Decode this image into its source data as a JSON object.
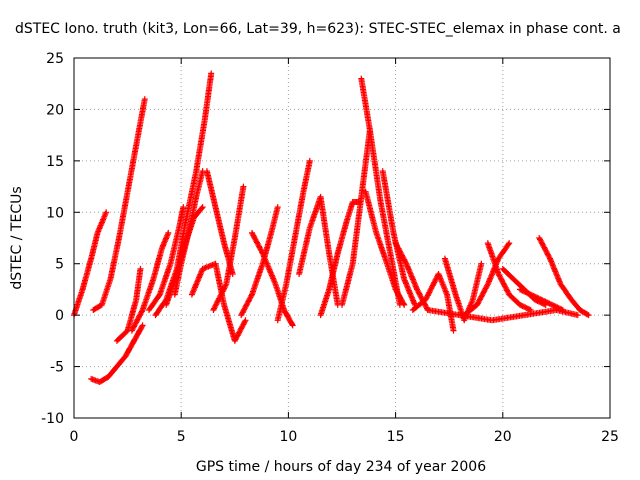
{
  "chart_data": {
    "type": "scatter",
    "title": "dSTEC Iono. truth (kit3, Lon=66, Lat=39, h=623): STEC-STEC_elemax in phase cont. a",
    "xlabel": "GPS time / hours of day 234 of year 2006",
    "ylabel": "dSTEC  / TECUs",
    "xlim": [
      0,
      25
    ],
    "ylim": [
      -10,
      25
    ],
    "xticks": [
      0,
      5,
      10,
      15,
      20,
      25
    ],
    "yticks": [
      -10,
      -5,
      0,
      5,
      10,
      15,
      20,
      25
    ],
    "grid": true,
    "marker": "plus",
    "color": "#ff0000",
    "series": [
      {
        "x": [
          0.0,
          0.4,
          0.8,
          1.1,
          1.5
        ],
        "y": [
          0.0,
          2.5,
          5.5,
          8.0,
          10.0
        ]
      },
      {
        "x": [
          0.9,
          1.3,
          1.7,
          2.1,
          2.5,
          2.9,
          3.3
        ],
        "y": [
          0.5,
          1.0,
          3.5,
          7.5,
          12.0,
          16.5,
          21.0
        ]
      },
      {
        "x": [
          0.8,
          1.2,
          1.6,
          2.0,
          2.4,
          2.8,
          3.2
        ],
        "y": [
          -6.2,
          -6.5,
          -6.0,
          -5.0,
          -4.0,
          -2.5,
          -1.0
        ]
      },
      {
        "x": [
          2.0,
          2.5,
          2.9,
          3.1
        ],
        "y": [
          -2.5,
          -1.5,
          1.5,
          4.5
        ]
      },
      {
        "x": [
          2.7,
          3.2,
          3.7,
          4.1,
          4.4
        ],
        "y": [
          -1.5,
          0.5,
          3.5,
          6.5,
          8.0
        ]
      },
      {
        "x": [
          3.5,
          4.0,
          4.5,
          4.9,
          5.1
        ],
        "y": [
          0.5,
          2.0,
          5.0,
          8.5,
          10.5
        ]
      },
      {
        "x": [
          3.8,
          4.3,
          4.8,
          5.2,
          5.7,
          6.1,
          6.4
        ],
        "y": [
          0.0,
          1.5,
          4.5,
          9.0,
          14.0,
          19.0,
          23.5
        ]
      },
      {
        "x": [
          4.7,
          5.0,
          5.4,
          5.7,
          6.0
        ],
        "y": [
          2.0,
          5.0,
          8.5,
          11.5,
          14.0
        ]
      },
      {
        "x": [
          4.3,
          4.8,
          5.2,
          5.6,
          6.0
        ],
        "y": [
          1.0,
          4.0,
          7.0,
          9.5,
          10.5
        ]
      },
      {
        "x": [
          5.5,
          6.0,
          6.6,
          7.0,
          7.5,
          8.0
        ],
        "y": [
          2.0,
          4.5,
          5.0,
          1.0,
          -2.5,
          -0.5
        ]
      },
      {
        "x": [
          6.2,
          6.6,
          7.0,
          7.4
        ],
        "y": [
          14.0,
          10.5,
          7.0,
          4.0
        ]
      },
      {
        "x": [
          6.5,
          7.1,
          7.5,
          7.9
        ],
        "y": [
          0.5,
          3.0,
          7.5,
          12.5
        ]
      },
      {
        "x": [
          7.8,
          8.3,
          8.8,
          9.2,
          9.5
        ],
        "y": [
          0.0,
          2.0,
          5.0,
          8.0,
          10.5
        ]
      },
      {
        "x": [
          8.3,
          8.8,
          9.4,
          9.8,
          10.2
        ],
        "y": [
          8.0,
          6.0,
          3.0,
          0.5,
          -1.0
        ]
      },
      {
        "x": [
          9.5,
          9.9,
          10.3,
          10.7,
          11.0
        ],
        "y": [
          -0.5,
          3.0,
          7.5,
          12.0,
          15.0
        ]
      },
      {
        "x": [
          10.5,
          11.0,
          11.5,
          11.9,
          12.3
        ],
        "y": [
          4.0,
          8.5,
          11.5,
          6.0,
          1.0
        ]
      },
      {
        "x": [
          11.5,
          11.9,
          12.3,
          12.7,
          13.0,
          13.3
        ],
        "y": [
          0.0,
          2.5,
          6.0,
          9.0,
          11.0,
          11.0
        ]
      },
      {
        "x": [
          12.5,
          13.0,
          13.4,
          13.8
        ],
        "y": [
          1.0,
          5.0,
          11.5,
          18.0
        ]
      },
      {
        "x": [
          13.4,
          13.8,
          14.3,
          14.8,
          15.2
        ],
        "y": [
          23.0,
          18.0,
          11.0,
          5.5,
          1.0
        ]
      },
      {
        "x": [
          13.6,
          14.1,
          14.6,
          15.0,
          15.4
        ],
        "y": [
          12.0,
          8.0,
          5.0,
          2.5,
          1.0
        ]
      },
      {
        "x": [
          14.4,
          14.9,
          15.4,
          15.9
        ],
        "y": [
          14.0,
          8.0,
          3.5,
          1.0
        ]
      },
      {
        "x": [
          15.0,
          15.5,
          16.0,
          16.5
        ],
        "y": [
          7.0,
          5.0,
          2.5,
          0.5
        ]
      },
      {
        "x": [
          15.8,
          16.4,
          17.0,
          17.4,
          17.7
        ],
        "y": [
          0.5,
          1.5,
          4.0,
          2.0,
          -1.5
        ]
      },
      {
        "x": [
          17.3,
          17.8,
          18.2,
          18.6,
          19.0
        ],
        "y": [
          5.5,
          2.0,
          -0.5,
          1.5,
          5.0
        ]
      },
      {
        "x": [
          18.2,
          18.8,
          19.3,
          19.8,
          20.3
        ],
        "y": [
          0.0,
          1.0,
          3.0,
          5.5,
          7.0
        ]
      },
      {
        "x": [
          19.3,
          19.8,
          20.3,
          20.8,
          21.3
        ],
        "y": [
          7.0,
          4.0,
          2.0,
          1.0,
          0.5
        ]
      },
      {
        "x": [
          20.0,
          20.5,
          21.0,
          21.5,
          22.0
        ],
        "y": [
          4.5,
          3.5,
          2.5,
          1.5,
          1.0
        ]
      },
      {
        "x": [
          20.8,
          21.3,
          21.8,
          22.3,
          22.8
        ],
        "y": [
          2.5,
          2.0,
          1.5,
          1.0,
          0.5
        ]
      },
      {
        "x": [
          21.7,
          22.2,
          22.7,
          23.2,
          23.6,
          24.0
        ],
        "y": [
          7.5,
          5.5,
          3.0,
          1.5,
          0.5,
          0.0
        ]
      },
      {
        "x": [
          16.5,
          18.0,
          19.5,
          21.0,
          22.5,
          23.5
        ],
        "y": [
          0.5,
          0.0,
          -0.5,
          0.0,
          0.5,
          0.0
        ]
      }
    ]
  }
}
